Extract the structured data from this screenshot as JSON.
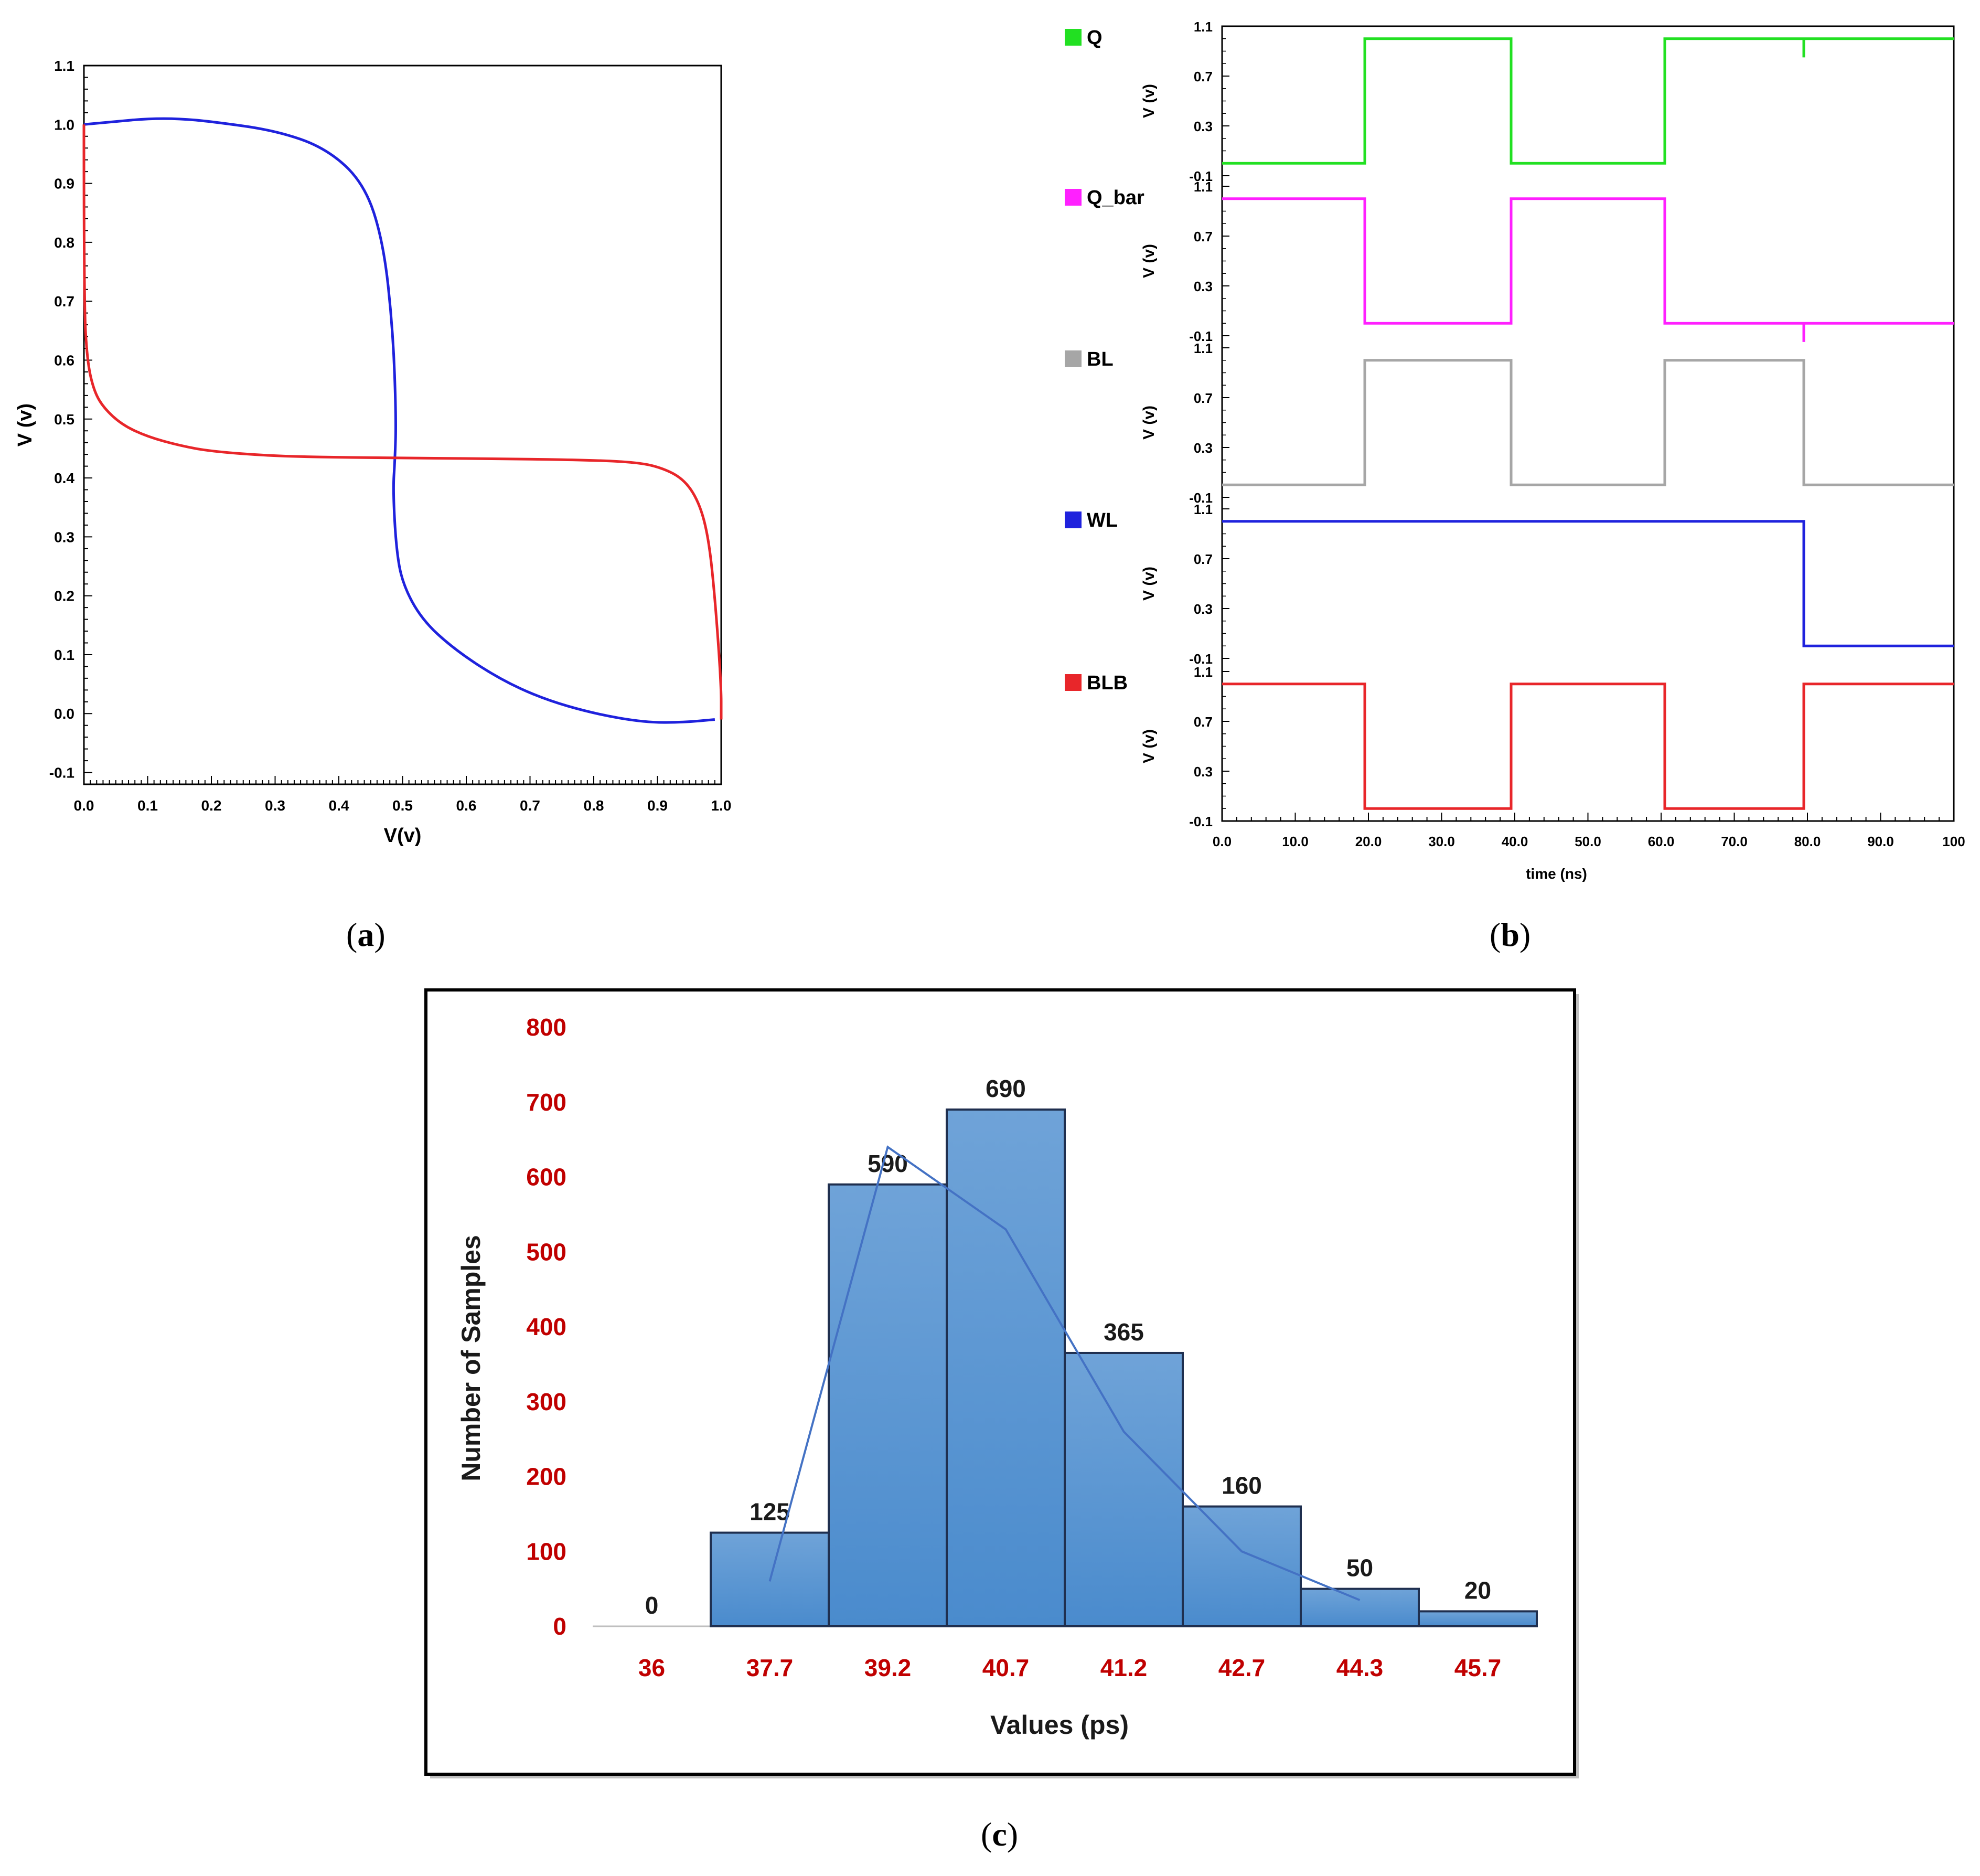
{
  "figure": {
    "panel_labels": {
      "a": "a",
      "b": "b",
      "c": "c"
    },
    "colors": {
      "red": "#e8262a",
      "blue": "#1f22dd",
      "green": "#22e022",
      "magenta": "#ff20ff",
      "gray": "#a6a6a6",
      "bar_fill": "#5b9bd5",
      "bar_edge": "#1f2f4f",
      "dark_red": "#c00000",
      "fit_line": "#4472c4"
    }
  },
  "chart_data": [
    {
      "id": "a",
      "type": "line",
      "title": "",
      "xlabel": "V(v)",
      "ylabel": "V (v)",
      "xlim": [
        0.0,
        1.0
      ],
      "ylim": [
        -0.12,
        1.1
      ],
      "x_ticks": [
        "0.0",
        "0.1",
        "0.2",
        "0.3",
        "0.4",
        "0.5",
        "0.6",
        "0.7",
        "0.8",
        "0.9",
        "1.0"
      ],
      "y_ticks": [
        "-0.1",
        "0.0",
        "0.1",
        "0.2",
        "0.3",
        "0.4",
        "0.5",
        "0.6",
        "0.7",
        "0.8",
        "0.9",
        "1.0",
        "1.1"
      ],
      "series": [
        {
          "name": "blue curve",
          "color": "#1f22dd",
          "x": [
            0.0,
            0.05,
            0.1,
            0.15,
            0.2,
            0.3,
            0.38,
            0.44,
            0.47,
            0.485,
            0.49,
            0.488,
            0.485,
            0.49,
            0.5,
            0.53,
            0.58,
            0.65,
            0.72,
            0.8,
            0.88,
            0.94,
            0.99
          ],
          "y": [
            1.0,
            1.005,
            1.01,
            1.01,
            1.005,
            0.99,
            0.96,
            0.9,
            0.8,
            0.65,
            0.5,
            0.43,
            0.38,
            0.28,
            0.22,
            0.16,
            0.11,
            0.06,
            0.025,
            0.0,
            -0.015,
            -0.015,
            -0.01
          ]
        },
        {
          "name": "red curve",
          "color": "#e8262a",
          "x": [
            0.0,
            0.0,
            0.005,
            0.015,
            0.03,
            0.06,
            0.1,
            0.15,
            0.2,
            0.3,
            0.4,
            0.5,
            0.6,
            0.7,
            0.8,
            0.86,
            0.9,
            0.94,
            0.965,
            0.98,
            0.99,
            1.0,
            1.0
          ],
          "y": [
            1.0,
            0.7,
            0.6,
            0.55,
            0.52,
            0.49,
            0.47,
            0.455,
            0.445,
            0.437,
            0.435,
            0.434,
            0.433,
            0.432,
            0.43,
            0.427,
            0.42,
            0.4,
            0.36,
            0.3,
            0.2,
            0.05,
            -0.01
          ]
        }
      ]
    },
    {
      "id": "b",
      "type": "line",
      "title": "",
      "xlabel": "time (ns)",
      "xlim": [
        0,
        100
      ],
      "x_ticks": [
        "0.0",
        "10.0",
        "20.0",
        "30.0",
        "40.0",
        "50.0",
        "60.0",
        "70.0",
        "80.0",
        "90.0",
        "100"
      ],
      "y_ticks": [
        "1.1",
        "0.7",
        "0.3",
        "-0.1"
      ],
      "ylim": [
        -0.1,
        1.1
      ],
      "subplots": [
        {
          "name": "Q",
          "ylabel": "V (v)",
          "color": "#22e022",
          "x": [
            0,
            19.5,
            19.5,
            39.5,
            39.5,
            60.5,
            60.5,
            79.5,
            79.5,
            79.5,
            80,
            80,
            100
          ],
          "y": [
            0.0,
            0.0,
            1.0,
            1.0,
            0.0,
            0.0,
            1.0,
            1.0,
            0.85,
            1.0,
            1.0,
            1.0,
            1.0
          ]
        },
        {
          "name": "Q_bar",
          "ylabel": "V (v)",
          "color": "#ff20ff",
          "x": [
            0,
            19.5,
            19.5,
            39.5,
            39.5,
            60.5,
            60.5,
            79.5,
            79.5,
            79.5,
            80,
            100
          ],
          "y": [
            1.0,
            1.0,
            0.0,
            0.0,
            1.0,
            1.0,
            0.0,
            0.0,
            -0.15,
            0.0,
            0.0,
            0.0
          ]
        },
        {
          "name": "BL",
          "ylabel": "V (v)",
          "color": "#a6a6a6",
          "x": [
            0,
            19.5,
            19.5,
            39.5,
            39.5,
            60.5,
            60.5,
            79.5,
            79.5,
            100
          ],
          "y": [
            0.0,
            0.0,
            1.0,
            1.0,
            0.0,
            0.0,
            1.0,
            1.0,
            0.0,
            0.0
          ]
        },
        {
          "name": "WL",
          "ylabel": "V (v)",
          "color": "#1f22dd",
          "x": [
            0,
            79.5,
            79.5,
            100
          ],
          "y": [
            1.0,
            1.0,
            0.0,
            0.0
          ]
        },
        {
          "name": "BLB",
          "ylabel": "V (v)",
          "color": "#e8262a",
          "x": [
            0,
            19.5,
            19.5,
            39.5,
            39.5,
            60.5,
            60.5,
            79.5,
            79.5,
            100
          ],
          "y": [
            1.0,
            1.0,
            0.0,
            0.0,
            1.0,
            1.0,
            0.0,
            0.0,
            1.0,
            1.0
          ]
        }
      ]
    },
    {
      "id": "c",
      "type": "bar",
      "title": "",
      "xlabel": "Values (ps)",
      "ylabel": "Number of Samples",
      "ylim": [
        0,
        800
      ],
      "y_ticks": [
        "800",
        "700",
        "600",
        "500",
        "400",
        "300",
        "200",
        "100",
        "0"
      ],
      "categories": [
        "36",
        "37.7",
        "39.2",
        "40.7",
        "41.2",
        "42.7",
        "44.3",
        "45.7"
      ],
      "values": [
        0,
        125,
        590,
        690,
        365,
        160,
        50,
        20
      ],
      "value_labels": [
        "0",
        "125",
        "590",
        "690",
        "365",
        "160",
        "50",
        "20"
      ],
      "fit_line": {
        "name": "trend",
        "values": [
          60,
          640,
          530,
          260,
          100,
          35
        ]
      }
    }
  ]
}
